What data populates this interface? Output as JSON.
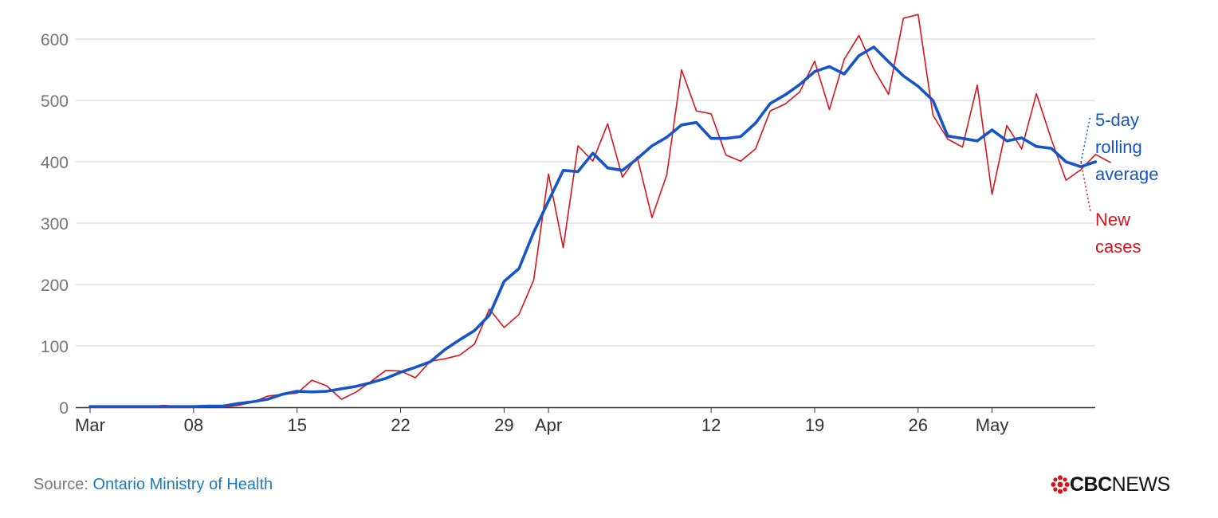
{
  "chart_data": {
    "type": "line",
    "x_start": "2020-03-01",
    "x_ticks": [
      "Mar",
      "08",
      "15",
      "22",
      "29",
      "Apr",
      "12",
      "19",
      "26",
      "May"
    ],
    "y_ticks": [
      "0",
      "100",
      "200",
      "300",
      "400",
      "500",
      "600"
    ],
    "ylim": [
      0,
      650
    ],
    "grid": true,
    "series": [
      {
        "name": "New cases",
        "color": "#d7141a",
        "values": [
          1,
          1,
          0,
          1,
          1,
          3,
          1,
          2,
          1,
          0,
          3,
          8,
          18,
          21,
          23,
          44,
          35,
          13,
          25,
          42,
          60,
          59,
          48,
          75,
          79,
          85,
          103,
          160,
          130,
          151,
          207,
          380,
          260,
          426,
          401,
          462,
          375,
          408,
          309,
          379,
          550,
          483,
          478,
          411,
          401,
          421,
          483,
          494,
          514,
          564,
          485,
          567,
          606,
          551,
          510,
          634,
          640,
          476,
          437,
          424,
          525,
          347,
          459,
          421,
          511,
          437,
          370,
          387,
          412,
          399
        ]
      },
      {
        "name": "5-day rolling average",
        "color": "#1655c8",
        "values": [
          1,
          1,
          1,
          1,
          1,
          1,
          1,
          1,
          2,
          2,
          6,
          9,
          13,
          21,
          26,
          25,
          26,
          30,
          34,
          40,
          47,
          57,
          65,
          74,
          94,
          110,
          125,
          150,
          205,
          226,
          285,
          336,
          386,
          384,
          414,
          390,
          386,
          405,
          426,
          440,
          460,
          464,
          438,
          438,
          441,
          463,
          495,
          509,
          526,
          547,
          555,
          543,
          573,
          587,
          563,
          540,
          523,
          500,
          442,
          438,
          434,
          452,
          434,
          439,
          425,
          422,
          400,
          392,
          400
        ]
      }
    ],
    "labels": {
      "rolling_avg": [
        "5-day",
        "rolling",
        "average"
      ],
      "new_cases": [
        "New",
        "cases"
      ]
    }
  },
  "footer": {
    "source_prefix": "Source:",
    "source_name": "Ontario Ministry of Health",
    "logo_cbc": "CBC",
    "logo_news": "NEWS"
  }
}
